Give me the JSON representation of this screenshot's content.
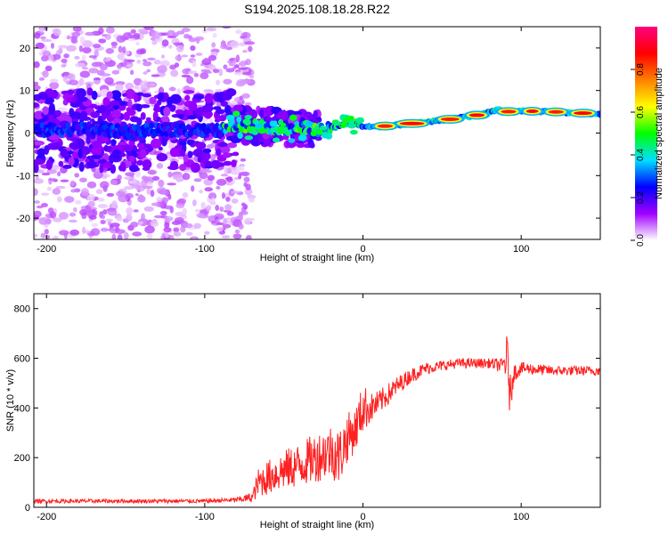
{
  "chart_data": [
    {
      "type": "heatmap",
      "title": "S194.2025.108.18.28.R22",
      "xlabel": "Height of straight line (km)",
      "ylabel": "Frequency (Hz)",
      "xlim": [
        -208,
        150
      ],
      "ylim": [
        -25,
        25
      ],
      "x_ticks": [
        -200,
        -100,
        0,
        100
      ],
      "y_ticks": [
        -20,
        -10,
        0,
        10,
        20
      ],
      "x_tick_labels": [
        "-200",
        "-100",
        "0",
        "100"
      ],
      "y_tick_labels": [
        "-20",
        "-10",
        "0",
        "10",
        "20"
      ],
      "colorbar": {
        "label": "Normalized spectral amplitude",
        "range": [
          0,
          1
        ],
        "ticks": [
          0,
          0.2,
          0.4,
          0.6,
          0.8
        ],
        "tick_labels": [
          "0.0",
          "0.2",
          "0.4",
          "0.6",
          "0.8"
        ],
        "colors": [
          "#ffffff",
          "#a000ff",
          "#0000ff",
          "#00e0ff",
          "#00ff00",
          "#ffff00",
          "#ff8000",
          "#ff0000",
          "#ff0080"
        ]
      },
      "ridge": {
        "x": [
          -208,
          -180,
          -150,
          -120,
          -90,
          -80,
          -60,
          -40,
          -25,
          -15,
          -5,
          0,
          10,
          30,
          50,
          70,
          85,
          90,
          100,
          120,
          150
        ],
        "frequency": [
          0.5,
          1.0,
          0.3,
          0.8,
          0.5,
          2.0,
          1.5,
          1.0,
          0.5,
          1.8,
          2.5,
          1.5,
          1.5,
          2.2,
          3.0,
          4.0,
          5.5,
          5.0,
          5.2,
          5.0,
          4.5
        ]
      }
    },
    {
      "type": "line",
      "title": "",
      "xlabel": "Height of straight line (km)",
      "ylabel": "SNR (10 * v/v)",
      "xlim": [
        -208,
        150
      ],
      "ylim": [
        0,
        860
      ],
      "x_ticks": [
        -200,
        -100,
        0,
        100
      ],
      "y_ticks": [
        0,
        200,
        400,
        600,
        800
      ],
      "x_tick_labels": [
        "-200",
        "-100",
        "0",
        "100"
      ],
      "y_tick_labels": [
        "0",
        "200",
        "400",
        "600",
        "800"
      ],
      "series": [
        {
          "name": "SNR",
          "color": "#ff2020",
          "x": [
            -208,
            -150,
            -100,
            -80,
            -70,
            -66,
            -60,
            -50,
            -40,
            -30,
            -20,
            -15,
            -10,
            -5,
            0,
            5,
            10,
            20,
            30,
            40,
            50,
            60,
            70,
            80,
            88,
            91,
            92,
            93,
            95,
            100,
            120,
            150
          ],
          "mean": [
            25,
            25,
            25,
            30,
            40,
            100,
            120,
            150,
            170,
            200,
            230,
            200,
            280,
            310,
            400,
            400,
            420,
            480,
            530,
            560,
            570,
            580,
            580,
            580,
            570,
            600,
            560,
            430,
            540,
            560,
            550,
            550
          ],
          "noise": [
            8,
            8,
            8,
            10,
            20,
            60,
            70,
            80,
            90,
            100,
            110,
            120,
            100,
            90,
            100,
            60,
            50,
            40,
            30,
            25,
            20,
            20,
            20,
            20,
            30,
            100,
            100,
            100,
            40,
            25,
            20,
            20
          ]
        }
      ]
    }
  ]
}
